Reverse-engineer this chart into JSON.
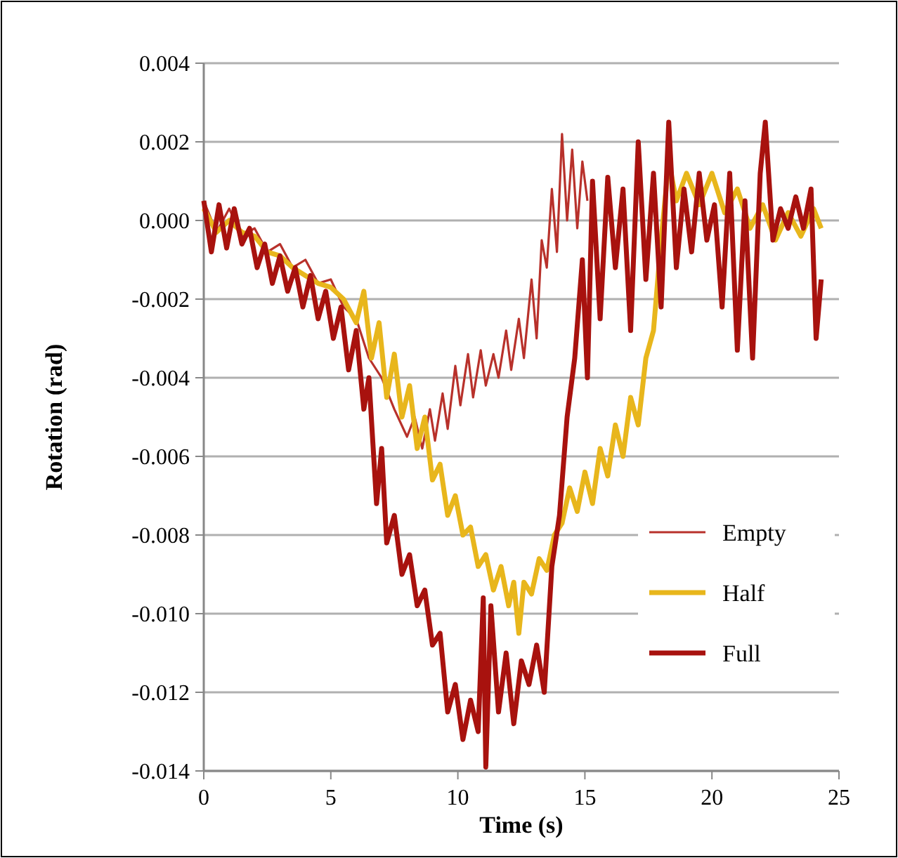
{
  "chart_data": {
    "type": "line",
    "xlabel": "Time (s)",
    "ylabel": "Rotation (rad)",
    "xlim": [
      0,
      25
    ],
    "xticks": [
      0,
      5,
      10,
      15,
      20,
      25
    ],
    "ylim": [
      -0.014,
      0.004
    ],
    "yticks": [
      {
        "value": 0.004,
        "label": "0.004"
      },
      {
        "value": 0.002,
        "label": "0.002"
      },
      {
        "value": 0,
        "label": "0.000"
      },
      {
        "value": -0.002,
        "label": "-0.002"
      },
      {
        "value": -0.004,
        "label": "-0.004"
      },
      {
        "value": -0.006,
        "label": "-0.006"
      },
      {
        "value": -0.008,
        "label": "-0.008"
      },
      {
        "value": -0.01,
        "label": "-0.010"
      },
      {
        "value": -0.012,
        "label": "-0.012"
      },
      {
        "value": -0.014,
        "label": "-0.014"
      }
    ],
    "grid": "y",
    "legend": "bottom right",
    "marker": "none",
    "line_style": "solid",
    "series": [
      {
        "name": "Empty",
        "color": "#b8312b",
        "x": [
          0,
          0.5,
          1,
          1.5,
          2,
          2.5,
          3,
          3.5,
          4,
          4.5,
          5,
          5.5,
          6,
          6.5,
          7,
          7.5,
          8,
          8.3,
          8.6,
          8.9,
          9.1,
          9.4,
          9.6,
          9.9,
          10.1,
          10.4,
          10.6,
          10.9,
          11.1,
          11.4,
          11.6,
          11.9,
          12.1,
          12.4,
          12.6,
          12.9,
          13.1,
          13.3,
          13.5,
          13.7,
          13.9,
          14.1,
          14.3,
          14.5,
          14.7,
          14.9,
          15.1
        ],
        "values": [
          0.0005,
          -0.0003,
          0.0003,
          -0.0004,
          -0.0002,
          -0.0008,
          -0.0006,
          -0.0012,
          -0.001,
          -0.0016,
          -0.0015,
          -0.0022,
          -0.0025,
          -0.0035,
          -0.004,
          -0.0048,
          -0.0055,
          -0.005,
          -0.0058,
          -0.0048,
          -0.0056,
          -0.0044,
          -0.0053,
          -0.0037,
          -0.0047,
          -0.0034,
          -0.0045,
          -0.0033,
          -0.0042,
          -0.0034,
          -0.004,
          -0.0028,
          -0.0038,
          -0.0025,
          -0.0035,
          -0.0015,
          -0.003,
          -0.0005,
          -0.0012,
          0.0008,
          -0.0008,
          0.0022,
          0,
          0.0018,
          -0.0002,
          0.0015,
          0.0005
        ]
      },
      {
        "name": "Half",
        "color": "#e8b61c",
        "x": [
          0,
          0.5,
          1,
          1.5,
          2,
          2.5,
          3,
          3.5,
          4,
          4.5,
          5,
          5.5,
          6,
          6.3,
          6.6,
          6.9,
          7.2,
          7.5,
          7.8,
          8.1,
          8.4,
          8.7,
          9,
          9.3,
          9.6,
          9.9,
          10.2,
          10.5,
          10.8,
          11.1,
          11.4,
          11.7,
          12,
          12.2,
          12.4,
          12.6,
          12.9,
          13.2,
          13.5,
          13.8,
          14.1,
          14.4,
          14.7,
          15,
          15.3,
          15.6,
          15.9,
          16.2,
          16.5,
          16.8,
          17.1,
          17.4,
          17.7,
          18,
          18.3,
          18.6,
          19,
          19.5,
          20,
          20.5,
          21,
          21.5,
          22,
          22.5,
          23,
          23.5,
          24,
          24.3
        ],
        "values": [
          0.0003,
          -0.0003,
          0,
          -0.0003,
          -0.0004,
          -0.0008,
          -0.0009,
          -0.0012,
          -0.0014,
          -0.0016,
          -0.0017,
          -0.002,
          -0.0026,
          -0.0018,
          -0.0035,
          -0.0026,
          -0.0045,
          -0.0034,
          -0.005,
          -0.0042,
          -0.0058,
          -0.005,
          -0.0066,
          -0.0062,
          -0.0075,
          -0.007,
          -0.008,
          -0.0078,
          -0.0088,
          -0.0085,
          -0.0094,
          -0.0088,
          -0.0098,
          -0.0092,
          -0.0105,
          -0.0092,
          -0.0095,
          -0.0086,
          -0.0089,
          -0.008,
          -0.0077,
          -0.0068,
          -0.0074,
          -0.0064,
          -0.0072,
          -0.0058,
          -0.0065,
          -0.0052,
          -0.006,
          -0.0045,
          -0.0052,
          -0.0035,
          -0.0028,
          -0.0005,
          0.0015,
          0.0005,
          0.0012,
          0.0004,
          0.0012,
          0.0002,
          0.0008,
          -0.0002,
          0.0004,
          -0.0005,
          0.0002,
          -0.0004,
          0.0003,
          -0.0002
        ]
      },
      {
        "name": "Full",
        "color": "#a8120e",
        "x": [
          0,
          0.3,
          0.6,
          0.9,
          1.2,
          1.5,
          1.8,
          2.1,
          2.4,
          2.7,
          3,
          3.3,
          3.6,
          3.9,
          4.2,
          4.5,
          4.8,
          5.1,
          5.4,
          5.7,
          6,
          6.3,
          6.5,
          6.8,
          7,
          7.2,
          7.5,
          7.8,
          8.1,
          8.4,
          8.7,
          9,
          9.3,
          9.6,
          9.9,
          10.2,
          10.5,
          10.8,
          11,
          11.1,
          11.3,
          11.6,
          11.9,
          12.2,
          12.5,
          12.8,
          13.1,
          13.4,
          13.7,
          14,
          14.3,
          14.6,
          14.9,
          15.1,
          15.3,
          15.6,
          15.9,
          16.2,
          16.5,
          16.8,
          17.1,
          17.4,
          17.7,
          18,
          18.3,
          18.6,
          18.9,
          19.2,
          19.5,
          19.8,
          20.1,
          20.4,
          20.7,
          21,
          21.3,
          21.6,
          21.9,
          22.1,
          22.4,
          22.7,
          23,
          23.3,
          23.6,
          23.9,
          24.1,
          24.3
        ],
        "values": [
          0.0005,
          -0.0008,
          0.0004,
          -0.0007,
          0.0003,
          -0.0006,
          -0.0002,
          -0.0012,
          -0.0006,
          -0.0016,
          -0.0009,
          -0.0018,
          -0.0012,
          -0.0022,
          -0.0014,
          -0.0025,
          -0.0018,
          -0.003,
          -0.0022,
          -0.0038,
          -0.0028,
          -0.0048,
          -0.004,
          -0.0072,
          -0.0058,
          -0.0082,
          -0.0075,
          -0.009,
          -0.0085,
          -0.0098,
          -0.0094,
          -0.0108,
          -0.0105,
          -0.0125,
          -0.0118,
          -0.0132,
          -0.0122,
          -0.013,
          -0.0096,
          -0.0139,
          -0.0098,
          -0.0125,
          -0.011,
          -0.0128,
          -0.0112,
          -0.0118,
          -0.0108,
          -0.012,
          -0.0088,
          -0.0075,
          -0.005,
          -0.0035,
          -0.001,
          -0.004,
          0.001,
          -0.0025,
          0.0011,
          -0.0012,
          0.0008,
          -0.0028,
          0.002,
          -0.0015,
          0.0012,
          -0.0022,
          0.0025,
          -0.0012,
          0.0008,
          -0.0008,
          0.0012,
          -0.0005,
          0.0004,
          -0.0022,
          0.0012,
          -0.0033,
          0.0005,
          -0.0035,
          0.0012,
          0.0025,
          -0.0005,
          0.0003,
          -0.0002,
          0.0006,
          -0.0002,
          0.0008,
          -0.003,
          -0.0015
        ]
      }
    ]
  }
}
